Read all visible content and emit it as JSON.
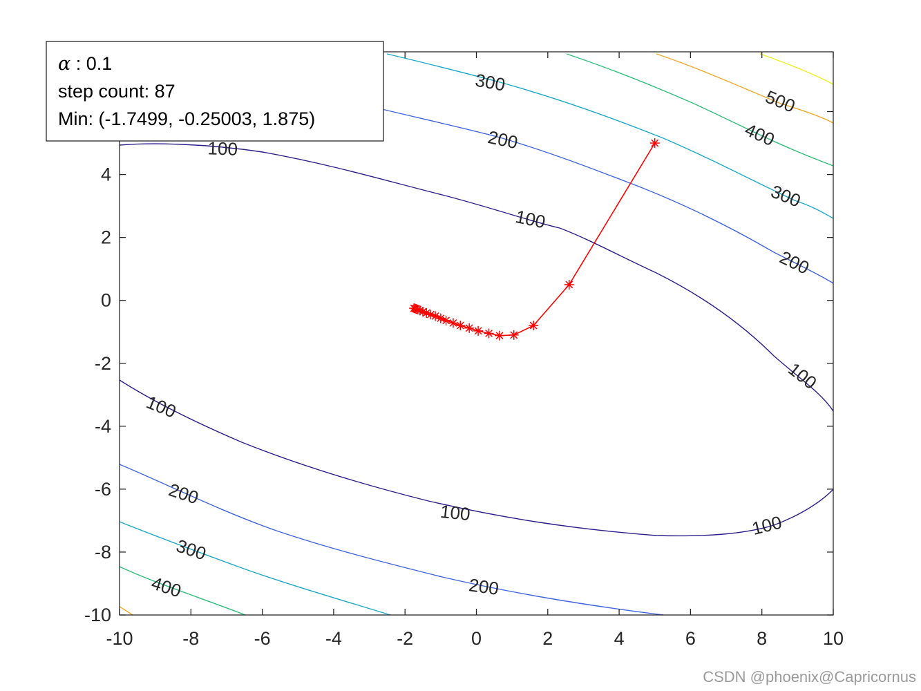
{
  "chart_data": {
    "type": "line",
    "title": "",
    "xlabel": "",
    "ylabel": "",
    "xlim": [
      -10,
      10
    ],
    "ylim": [
      -10,
      7.9
    ],
    "xticks": [
      "-10",
      "-8",
      "-6",
      "-4",
      "-2",
      "0",
      "2",
      "4",
      "6",
      "8",
      "10"
    ],
    "yticks": [
      "-10",
      "-8",
      "-6",
      "-4",
      "-2",
      "0",
      "2",
      "4",
      "6"
    ],
    "grid": false,
    "contour_levels": [
      {
        "level": "100",
        "color": "#2c1e8c"
      },
      {
        "level": "200",
        "color": "#3f64e0"
      },
      {
        "level": "300",
        "color": "#1aa8c8"
      },
      {
        "level": "400",
        "color": "#2fbe7a"
      },
      {
        "level": "500",
        "color": "#f0a828"
      },
      {
        "level": "600",
        "color": "#f2ee1e"
      }
    ],
    "path": {
      "name": "gradient descent path",
      "color": "#ff0000",
      "x": [
        5.0,
        2.6,
        1.6,
        1.05,
        0.65,
        0.35,
        0.05,
        -0.2,
        -0.45,
        -0.65,
        -0.85,
        -1.0,
        -1.15,
        -1.28,
        -1.4,
        -1.5,
        -1.58,
        -1.64,
        -1.69,
        -1.72,
        -1.7499
      ],
      "y": [
        5.0,
        0.5,
        -0.8,
        -1.1,
        -1.12,
        -1.05,
        -0.97,
        -0.88,
        -0.8,
        -0.72,
        -0.64,
        -0.57,
        -0.5,
        -0.45,
        -0.4,
        -0.36,
        -0.32,
        -0.29,
        -0.27,
        -0.26,
        -0.25003
      ]
    },
    "annotation": {
      "alpha_symbol": "α",
      "alpha_text": " : 0.1",
      "step_text": "step count: 87",
      "min_text": "Min: (-1.7499, -0.25003, 1.875)"
    }
  },
  "watermark": "CSDN @phoenix@Capricornus"
}
